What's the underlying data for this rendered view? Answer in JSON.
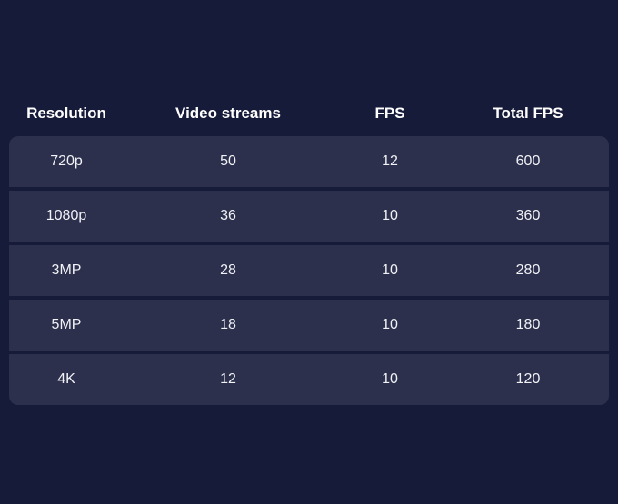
{
  "table": {
    "headers": [
      "Resolution",
      "Video streams",
      "FPS",
      "Total FPS"
    ],
    "rows": [
      [
        "720p",
        "50",
        "12",
        "600"
      ],
      [
        "1080p",
        "36",
        "10",
        "360"
      ],
      [
        "3MP",
        "28",
        "10",
        "280"
      ],
      [
        "5MP",
        "18",
        "10",
        "180"
      ],
      [
        "4K",
        "12",
        "10",
        "120"
      ]
    ]
  }
}
